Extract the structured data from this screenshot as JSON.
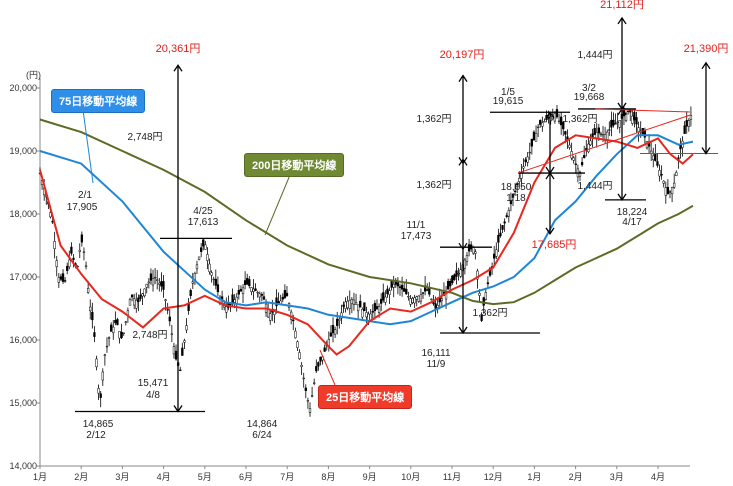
{
  "chart_data": {
    "type": "candlestick",
    "y_unit": "(円)",
    "ylim": [
      14000,
      20000
    ],
    "y_ticks": [
      "14,000",
      "15,000",
      "16,000",
      "17,000",
      "18,000",
      "19,000",
      "20,000"
    ],
    "x_months": [
      "1月",
      "2月",
      "3月",
      "4月",
      "5月",
      "6月",
      "7月",
      "8月",
      "9月",
      "10月",
      "11月",
      "12月",
      "1月",
      "2月",
      "3月",
      "4月"
    ],
    "series": [
      {
        "name": "25日移動平均線",
        "color": "#e8281e"
      },
      {
        "name": "75日移動平均線",
        "color": "#1f86d6"
      },
      {
        "name": "200日移動平均線",
        "color": "#5c6b25"
      }
    ],
    "ma_points": {
      "ma25": [
        [
          0.0,
          18700
        ],
        [
          0.5,
          17500
        ],
        [
          1.0,
          17050
        ],
        [
          1.5,
          16650
        ],
        [
          2.0,
          16450
        ],
        [
          2.5,
          16200
        ],
        [
          3.0,
          16500
        ],
        [
          3.5,
          16550
        ],
        [
          4.0,
          16700
        ],
        [
          4.5,
          16550
        ],
        [
          5.0,
          16500
        ],
        [
          5.5,
          16500
        ],
        [
          6.0,
          16400
        ],
        [
          6.5,
          16250
        ],
        [
          7.0,
          15900
        ],
        [
          7.2,
          15770
        ],
        [
          7.5,
          15900
        ],
        [
          8.0,
          16300
        ],
        [
          8.5,
          16500
        ],
        [
          9.0,
          16450
        ],
        [
          9.5,
          16600
        ],
        [
          10.0,
          16800
        ],
        [
          10.5,
          16950
        ],
        [
          11.0,
          17150
        ],
        [
          11.5,
          17700
        ],
        [
          12.0,
          18500
        ],
        [
          12.5,
          19050
        ],
        [
          13.0,
          19250
        ],
        [
          13.5,
          19200
        ],
        [
          14.0,
          19150
        ],
        [
          14.5,
          19050
        ],
        [
          15.0,
          19200
        ],
        [
          15.3,
          18950
        ],
        [
          15.6,
          18800
        ],
        [
          15.85,
          18950
        ]
      ],
      "ma75": [
        [
          0.0,
          19000
        ],
        [
          1.0,
          18800
        ],
        [
          2.0,
          18200
        ],
        [
          3.0,
          17400
        ],
        [
          3.5,
          17100
        ],
        [
          4.0,
          16800
        ],
        [
          4.5,
          16600
        ],
        [
          5.0,
          16550
        ],
        [
          5.5,
          16600
        ],
        [
          6.0,
          16550
        ],
        [
          6.5,
          16500
        ],
        [
          7.0,
          16400
        ],
        [
          7.5,
          16350
        ],
        [
          8.0,
          16300
        ],
        [
          8.5,
          16250
        ],
        [
          9.0,
          16300
        ],
        [
          9.5,
          16450
        ],
        [
          10.0,
          16600
        ],
        [
          10.5,
          16750
        ],
        [
          11.0,
          16850
        ],
        [
          11.5,
          17000
        ],
        [
          12.0,
          17300
        ],
        [
          12.5,
          17900
        ],
        [
          13.0,
          18200
        ],
        [
          13.5,
          18600
        ],
        [
          14.0,
          18950
        ],
        [
          14.5,
          19250
        ],
        [
          15.0,
          19250
        ],
        [
          15.5,
          19100
        ],
        [
          15.85,
          19150
        ]
      ],
      "ma200": [
        [
          0.0,
          19500
        ],
        [
          1.0,
          19300
        ],
        [
          2.0,
          19000
        ],
        [
          3.0,
          18700
        ],
        [
          4.0,
          18350
        ],
        [
          5.0,
          17900
        ],
        [
          6.0,
          17500
        ],
        [
          7.0,
          17200
        ],
        [
          8.0,
          17000
        ],
        [
          9.0,
          16900
        ],
        [
          10.0,
          16750
        ],
        [
          10.5,
          16620
        ],
        [
          11.0,
          16570
        ],
        [
          11.5,
          16600
        ],
        [
          12.0,
          16750
        ],
        [
          12.5,
          16950
        ],
        [
          13.0,
          17150
        ],
        [
          13.5,
          17300
        ],
        [
          14.0,
          17450
        ],
        [
          14.5,
          17650
        ],
        [
          15.0,
          17850
        ],
        [
          15.5,
          18000
        ],
        [
          15.85,
          18130
        ]
      ]
    },
    "annotations": {
      "levels_black": [
        "2/1",
        "17,905",
        "4/25",
        "17,613",
        "2,748円",
        "2,748円",
        "15,471",
        "4/8",
        "14,865",
        "2/12",
        "14,864",
        "6/24",
        "11/1",
        "17,473",
        "1,362円",
        "1,362円",
        "1,362円",
        "16,111",
        "11/9",
        "1/5",
        "19,615",
        "1,362円",
        "18,650",
        "1/18",
        "3/2",
        "19,668",
        "1,444円",
        "1,444円",
        "18,224",
        "4/17"
      ],
      "levels_red": [
        "20,361円",
        "20,197円",
        "17,685円",
        "21,112円",
        "21,390円"
      ]
    }
  },
  "labels": {
    "ma75": "75日移動平均線",
    "ma200": "200日移動平均線",
    "ma25": "25日移動平均線"
  }
}
